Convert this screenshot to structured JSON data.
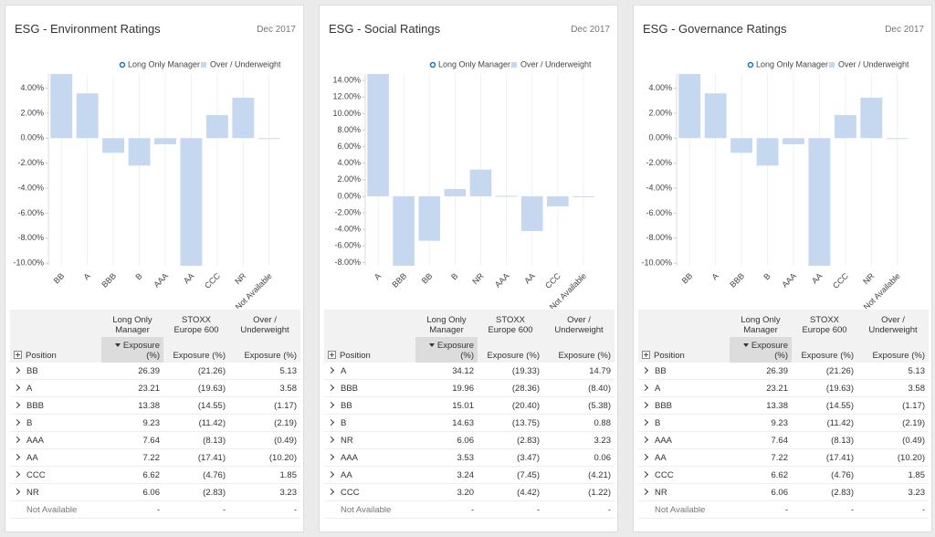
{
  "chart_data": [
    {
      "type": "bar",
      "title": "ESG - Environment Ratings",
      "subtitle": "Dec 2017",
      "legend_items": [
        {
          "name": "Long Only Manager",
          "color": "#1f6fb4",
          "marker": "circle-outline"
        }
      ],
      "categories": [
        "BB",
        "A",
        "BBB",
        "B",
        "AAA",
        "AA",
        "CCC",
        "NR",
        "Not Available"
      ],
      "series": [
        {
          "name": "Over / Underweight",
          "color": "#c6d8f0",
          "values": [
            5.13,
            3.58,
            -1.17,
            -2.19,
            -0.49,
            -10.2,
            1.85,
            3.23,
            0
          ]
        }
      ],
      "ylim": [
        -10.2,
        5.13
      ],
      "yticks": [
        {
          "value": 4,
          "label": "4.00%"
        },
        {
          "value": 2,
          "label": "2.00%"
        },
        {
          "value": 0,
          "label": "0.00%"
        },
        {
          "value": -2,
          "label": "-2.00%"
        },
        {
          "value": -4,
          "label": "-4.00%"
        },
        {
          "value": -6,
          "label": "-6.00%"
        },
        {
          "value": -8,
          "label": "-8.00%"
        },
        {
          "value": -10,
          "label": "-10.00%"
        }
      ]
    },
    {
      "type": "bar",
      "title": "ESG - Social Ratings",
      "subtitle": "Dec 2017",
      "legend_items": [
        {
          "name": "Long Only Manager",
          "color": "#1f6fb4",
          "marker": "circle-outline"
        }
      ],
      "categories": [
        "A",
        "BBB",
        "BB",
        "B",
        "NR",
        "AAA",
        "AA",
        "CCC",
        "Not Available"
      ],
      "series": [
        {
          "name": "Over / Underweight",
          "color": "#c6d8f0",
          "values": [
            14.79,
            -8.4,
            -5.38,
            0.88,
            3.23,
            0.06,
            -4.21,
            -1.22,
            0
          ]
        }
      ],
      "ylim": [
        -8.4,
        14.79
      ],
      "yticks": [
        {
          "value": 14,
          "label": "14.00%"
        },
        {
          "value": 12,
          "label": "12.00%"
        },
        {
          "value": 10,
          "label": "10.00%"
        },
        {
          "value": 8,
          "label": "8.00%"
        },
        {
          "value": 6,
          "label": "6.00%"
        },
        {
          "value": 4,
          "label": "4.00%"
        },
        {
          "value": 2,
          "label": "2.00%"
        },
        {
          "value": 0,
          "label": "0.00%"
        },
        {
          "value": -2,
          "label": "-2.00%"
        },
        {
          "value": -4,
          "label": "-4.00%"
        },
        {
          "value": -6,
          "label": "-6.00%"
        },
        {
          "value": -8,
          "label": "-8.00%"
        }
      ]
    },
    {
      "type": "bar",
      "title": "ESG - Governance Ratings",
      "subtitle": "Dec 2017",
      "legend_items": [
        {
          "name": "Long Only Manager",
          "color": "#1f6fb4",
          "marker": "circle-outline"
        }
      ],
      "categories": [
        "BB",
        "A",
        "BBB",
        "B",
        "AAA",
        "AA",
        "CCC",
        "NR",
        "Not Available"
      ],
      "series": [
        {
          "name": "Over / Underweight",
          "color": "#c6d8f0",
          "values": [
            5.13,
            3.58,
            -1.17,
            -2.19,
            -0.49,
            -10.2,
            1.85,
            3.23,
            0
          ]
        }
      ],
      "ylim": [
        -10.2,
        5.13
      ],
      "yticks": [
        {
          "value": 4,
          "label": "4.00%"
        },
        {
          "value": 2,
          "label": "2.00%"
        },
        {
          "value": 0,
          "label": "0.00%"
        },
        {
          "value": -2,
          "label": "-2.00%"
        },
        {
          "value": -4,
          "label": "-4.00%"
        },
        {
          "value": -6,
          "label": "-6.00%"
        },
        {
          "value": -8,
          "label": "-8.00%"
        },
        {
          "value": -10,
          "label": "-10.00%"
        }
      ]
    }
  ],
  "tables": [
    {
      "group_headers": [
        "Long Only Manager",
        "STOXX Europe 600",
        "Over / Underweight"
      ],
      "columns": [
        "Position",
        "Exposure (%)",
        "Exposure (%)",
        "Exposure (%)"
      ],
      "rows": [
        [
          "BB",
          "26.39",
          "(21.26)",
          "5.13"
        ],
        [
          "A",
          "23.21",
          "(19.63)",
          "3.58"
        ],
        [
          "BBB",
          "13.38",
          "(14.55)",
          "(1.17)"
        ],
        [
          "B",
          "9.23",
          "(11.42)",
          "(2.19)"
        ],
        [
          "AAA",
          "7.64",
          "(8.13)",
          "(0.49)"
        ],
        [
          "AA",
          "7.22",
          "(17.41)",
          "(10.20)"
        ],
        [
          "CCC",
          "6.62",
          "(4.76)",
          "1.85"
        ],
        [
          "NR",
          "6.06",
          "(2.83)",
          "3.23"
        ],
        [
          "Not Available",
          "-",
          "-",
          "-"
        ]
      ]
    },
    {
      "group_headers": [
        "Long Only Manager",
        "STOXX Europe 600",
        "Over / Underweight"
      ],
      "columns": [
        "Position",
        "Exposure (%)",
        "Exposure (%)",
        "Exposure (%)"
      ],
      "rows": [
        [
          "A",
          "34.12",
          "(19.33)",
          "14.79"
        ],
        [
          "BBB",
          "19.96",
          "(28.36)",
          "(8.40)"
        ],
        [
          "BB",
          "15.01",
          "(20.40)",
          "(5.38)"
        ],
        [
          "B",
          "14.63",
          "(13.75)",
          "0.88"
        ],
        [
          "NR",
          "6.06",
          "(2.83)",
          "3.23"
        ],
        [
          "AAA",
          "3.53",
          "(3.47)",
          "0.06"
        ],
        [
          "AA",
          "3.24",
          "(7.45)",
          "(4.21)"
        ],
        [
          "CCC",
          "3.20",
          "(4.42)",
          "(1.22)"
        ],
        [
          "Not Available",
          "-",
          "-",
          "-"
        ]
      ]
    },
    {
      "group_headers": [
        "Long Only Manager",
        "STOXX Europe 600",
        "Over / Underweight"
      ],
      "columns": [
        "Position",
        "Exposure (%)",
        "Exposure (%)",
        "Exposure (%)"
      ],
      "rows": [
        [
          "BB",
          "26.39",
          "(21.26)",
          "5.13"
        ],
        [
          "A",
          "23.21",
          "(19.63)",
          "3.58"
        ],
        [
          "BBB",
          "13.38",
          "(14.55)",
          "(1.17)"
        ],
        [
          "B",
          "9.23",
          "(11.42)",
          "(2.19)"
        ],
        [
          "AAA",
          "7.64",
          "(8.13)",
          "(0.49)"
        ],
        [
          "AA",
          "7.22",
          "(17.41)",
          "(10.20)"
        ],
        [
          "CCC",
          "6.62",
          "(4.76)",
          "1.85"
        ],
        [
          "NR",
          "6.06",
          "(2.83)",
          "3.23"
        ],
        [
          "Not Available",
          "-",
          "-",
          "-"
        ]
      ]
    }
  ]
}
